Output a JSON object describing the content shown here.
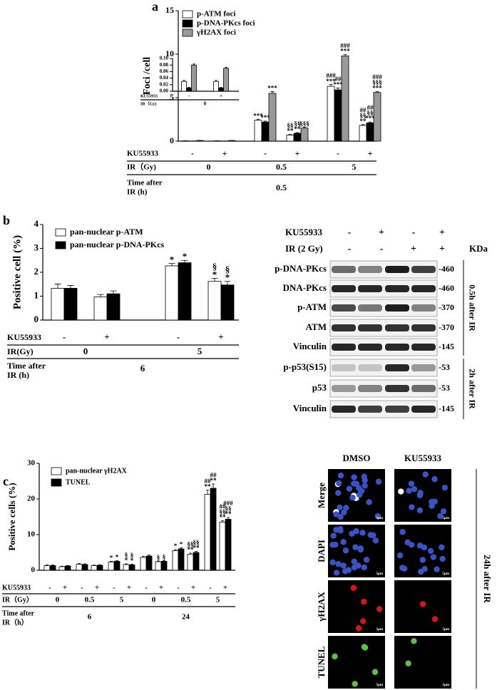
{
  "chart_data": [
    {
      "type": "bar",
      "panel": "a",
      "ylabel": "Foci /cell",
      "ylim": [
        0,
        15
      ],
      "yticks": [
        0,
        5,
        10,
        15
      ],
      "ku_label": "KU55933",
      "categories": [
        "-",
        "+",
        "-",
        "+",
        "-",
        "+"
      ],
      "group_label": "IR（Gy)",
      "groups": [
        "0",
        "0.5",
        "5"
      ],
      "time_label": [
        "Time after",
        "IR (h)"
      ],
      "time": [
        "0.5"
      ],
      "series": [
        {
          "name": "p-ATM foci",
          "color": "#ffffff",
          "values": [
            0.03,
            0.03,
            2.4,
            0.7,
            6.3,
            1.8
          ],
          "errors": [
            0.01,
            0.01,
            0.12,
            0.08,
            0.2,
            0.1
          ],
          "annotations": [
            [],
            [],
            [
              "***"
            ],
            [
              "§§",
              "**"
            ],
            [
              "###",
              "***"
            ],
            [
              "##",
              "§§",
              "**"
            ]
          ]
        },
        {
          "name": "p-DNA-PKcs foci",
          "color": "#000000",
          "values": [
            0.01,
            0.01,
            2.2,
            0.9,
            5.9,
            2.1
          ],
          "errors": [
            0.01,
            0.01,
            0.1,
            0.08,
            0.2,
            0.1
          ],
          "annotations": [
            [],
            [],
            [
              "***"
            ],
            [
              "§§",
              "**"
            ],
            [
              "##",
              "***"
            ],
            [
              "##",
              "§§",
              "***"
            ]
          ]
        },
        {
          "name": "γH2AX foci",
          "color": "#999999",
          "values": [
            0.08,
            0.07,
            5.5,
            1.5,
            9.8,
            5.6
          ],
          "errors": [
            0.01,
            0.01,
            0.2,
            0.1,
            0.15,
            0.12
          ],
          "annotations": [
            [],
            [],
            [
              "***"
            ],
            [
              "§§§"
            ],
            [
              "###",
              "***"
            ],
            [
              "###",
              "§§§",
              "***"
            ]
          ]
        }
      ]
    },
    {
      "type": "bar",
      "ylim": [
        0,
        0.1
      ],
      "yticks": [
        {
          "value": 0,
          "label": "0.00"
        },
        {
          "value": 0.02,
          "label": "0.02"
        },
        {
          "value": 0.04,
          "label": "0.04"
        },
        {
          "value": 0.06,
          "label": "0.06"
        },
        {
          "value": 0.08,
          "label": "0.08"
        },
        {
          "value": 0.1,
          "label": "0.10"
        }
      ],
      "ku_label": "KU55933",
      "categories": [
        "-",
        "+"
      ],
      "group_label": "IR（Gy)",
      "groups": [
        "0"
      ],
      "series": [
        {
          "color": "#ffffff",
          "values": [
            0.03,
            0.03
          ],
          "errors": [
            0.003,
            0.003
          ]
        },
        {
          "color": "#000000",
          "values": [
            0.01,
            0.01
          ],
          "errors": [
            0.002,
            0.002
          ]
        },
        {
          "color": "#999999",
          "values": [
            0.08,
            0.07
          ],
          "errors": [
            0.003,
            0.003
          ]
        }
      ]
    },
    {
      "type": "bar",
      "panel": "b",
      "ylabel": "Positive cell (%)",
      "ylim": [
        0,
        4
      ],
      "yticks": [
        0,
        1,
        2,
        3,
        4
      ],
      "ku_label": "KU55933",
      "categories": [
        "-",
        "+",
        "-",
        "+"
      ],
      "group_label": "IR(Gy)",
      "groups": [
        "0",
        "5"
      ],
      "time_label": [
        "Time after",
        "IR (h)"
      ],
      "time": [
        "6"
      ],
      "series": [
        {
          "name": "pan-nuclear p-ATM",
          "color": "#ffffff",
          "values": [
            1.33,
            0.97,
            2.27,
            1.62
          ],
          "errors": [
            0.18,
            0.1,
            0.1,
            0.13
          ],
          "annotations": [
            [],
            [],
            [
              "*"
            ],
            [
              "§",
              "*"
            ]
          ]
        },
        {
          "name": "pan-nuclear p-DNA-PKcs",
          "color": "#000000",
          "values": [
            1.33,
            1.1,
            2.4,
            1.47
          ],
          "errors": [
            0.12,
            0.12,
            0.1,
            0.15
          ],
          "annotations": [
            [],
            [],
            [
              "*"
            ],
            [
              "§",
              "*"
            ]
          ]
        }
      ]
    },
    {
      "type": "bar",
      "panel": "c",
      "ylabel": "Positive cells (%)",
      "ylim": [
        0,
        30
      ],
      "yticks": [
        0,
        10,
        20,
        30
      ],
      "ku_label": "KU55933",
      "categories": [
        "-",
        "+",
        "-",
        "+",
        "-",
        "+",
        "-",
        "+",
        "-",
        "+",
        "-",
        "+"
      ],
      "group_label": "IR（Gy）",
      "groups": [
        "0",
        "0.5",
        "5",
        "0",
        "0.5",
        "5"
      ],
      "time_label": [
        "Time after",
        "IR（h）"
      ],
      "time": [
        "6",
        "24"
      ],
      "series": [
        {
          "name": "pan-nuclear γH2AX",
          "color": "#ffffff",
          "values": [
            1.3,
            1.0,
            1.7,
            1.3,
            2.3,
            1.6,
            3.6,
            2.4,
            5.5,
            4.5,
            21.3,
            13.5
          ],
          "errors": [
            0.2,
            0.15,
            0.2,
            0.15,
            0.2,
            0.2,
            0.3,
            0.2,
            0.3,
            0.3,
            1.2,
            0.4
          ],
          "annotations": [
            [],
            [],
            [],
            [],
            [
              "*"
            ],
            [
              "§",
              "*"
            ],
            [],
            [
              "§"
            ],
            [
              "*"
            ],
            [
              "§§",
              "**"
            ],
            [
              "##",
              "**"
            ],
            [
              "##",
              "§§",
              "**"
            ]
          ]
        },
        {
          "name": "TUNEL",
          "color": "#000000",
          "values": [
            1.3,
            1.2,
            1.6,
            1.4,
            2.5,
            1.5,
            4.0,
            2.5,
            6.0,
            5.0,
            23.0,
            14.3
          ],
          "errors": [
            0.2,
            0.15,
            0.2,
            0.15,
            0.2,
            0.2,
            0.3,
            0.2,
            0.3,
            0.3,
            1.2,
            0.5
          ],
          "annotations": [
            [],
            [],
            [],
            [],
            [
              "*"
            ],
            [
              "§",
              "*"
            ],
            [],
            [
              "§"
            ],
            [
              "*"
            ],
            [
              "§§",
              "**"
            ],
            [
              "##",
              "**"
            ],
            [
              "###",
              "§§",
              "**"
            ]
          ]
        }
      ]
    }
  ],
  "blot": {
    "ku_label": "KU55933",
    "ku": [
      "-",
      "+",
      "-",
      "+"
    ],
    "ir_label": "IR (2 Gy)",
    "ir": [
      "-",
      "-",
      "+",
      "+"
    ],
    "unit": "KDa",
    "rows": [
      {
        "label": "p-DNA-PKcs",
        "kda": "-460"
      },
      {
        "label": "DNA-PKcs",
        "kda": "-460"
      },
      {
        "label": "p-ATM",
        "kda": "-370"
      },
      {
        "label": "ATM",
        "kda": "-370"
      },
      {
        "label": "Vinculin",
        "kda": "-145"
      },
      {
        "label": "p-p53(S15)",
        "kda": "-53"
      },
      {
        "label": "p53",
        "kda": "-53"
      },
      {
        "label": "Vinculin",
        "kda": "-145"
      }
    ],
    "groups": [
      "0.5h after IR",
      "2h after IR"
    ]
  },
  "microscopy": {
    "columns": [
      "DMSO",
      "KU55933"
    ],
    "rows": [
      "Merge",
      "DAPI",
      "γH2AX",
      "TUNEL"
    ],
    "side_label": "24h after IR",
    "scale_bar": "5μm"
  }
}
